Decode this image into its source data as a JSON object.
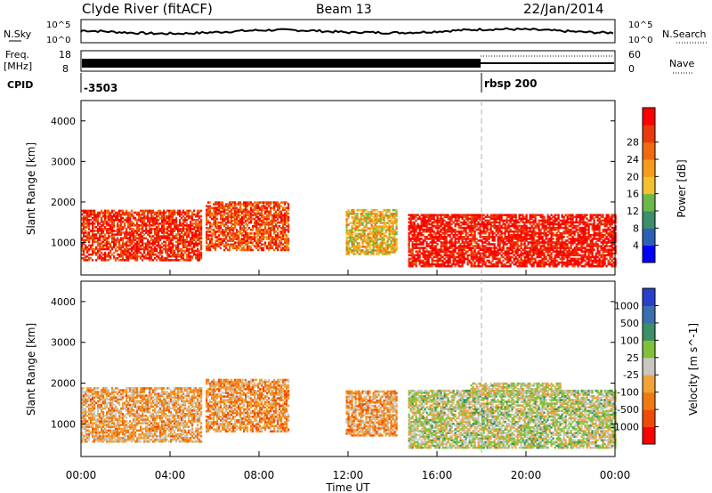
{
  "header": {
    "site": "Clyde River (fitACF)",
    "beam": "Beam 13",
    "date": "22/Jan/2014"
  },
  "panels": {
    "nsky_label": "N.Sky",
    "nsky_ticks": [
      "10^5",
      "10^0"
    ],
    "nsearch_label": "N.Search",
    "nsearch_ticks": [
      "10^5",
      "10^0"
    ],
    "freq_label_line1": "Freq.",
    "freq_label_line2": "[MHz]",
    "freq_ticks": [
      "18",
      "8"
    ],
    "nave_label": "Nave",
    "nave_ticks": [
      "60",
      "0"
    ],
    "cpid_label": "CPID",
    "cpid_first": "-3503",
    "cpid_second": "rbsp 200"
  },
  "colors": {
    "power_scale": [
      "#0000ff",
      "#2f5fb5",
      "#3c8f6a",
      "#6cb84a",
      "#f2c12e",
      "#f59b1e",
      "#f06a10",
      "#e83a0a",
      "#ff0000"
    ],
    "velocity_scale": [
      "#2a3fc9",
      "#3c6fb0",
      "#3d8f66",
      "#7fc23a",
      "#c8c8c0",
      "#f2a23a",
      "#f07a12",
      "#f04a0a",
      "#ff0000"
    ],
    "ground_scatter": "#b4b4b4"
  },
  "chart_data": [
    {
      "type": "heatmap",
      "title": "",
      "ylabel": "Slant Range [km]",
      "xlabel": "",
      "x_ticks": [
        "00:00",
        "04:00",
        "08:00",
        "12:00",
        "16:00",
        "20:00",
        "00:00"
      ],
      "y_ticks": [
        "1000",
        "2000",
        "3000",
        "4000"
      ],
      "ylim": [
        200,
        4500
      ],
      "xlim_hours": [
        0,
        24
      ],
      "colorbar_label": "Power [dB]",
      "colorbar_ticks": [
        "4",
        "8",
        "12",
        "16",
        "20",
        "24",
        "28"
      ],
      "clim": [
        0,
        30
      ],
      "data_regions": [
        {
          "t": [
            0.0,
            5.4
          ],
          "r": [
            550,
            1800
          ],
          "value": 26
        },
        {
          "t": [
            5.6,
            9.3
          ],
          "r": [
            800,
            2000
          ],
          "value": 24
        },
        {
          "t": [
            11.9,
            14.2
          ],
          "r": [
            700,
            1800
          ],
          "value": 16
        },
        {
          "t": [
            14.7,
            24.0
          ],
          "r": [
            400,
            1700
          ],
          "value": 28
        }
      ]
    },
    {
      "type": "heatmap",
      "title": "",
      "ylabel": "Slant Range [km]",
      "xlabel": "Time UT",
      "x_ticks": [
        "00:00",
        "04:00",
        "08:00",
        "12:00",
        "16:00",
        "20:00",
        "00:00"
      ],
      "y_ticks": [
        "1000",
        "2000",
        "3000",
        "4000"
      ],
      "ylim": [
        200,
        4500
      ],
      "xlim_hours": [
        0,
        24
      ],
      "colorbar_label": "Velocity [m s^-1]",
      "colorbar_ticks": [
        "1000",
        "500",
        "100",
        "25",
        "-25",
        "-100",
        "-500",
        "-1000"
      ],
      "clim": [
        -1200,
        1200
      ],
      "data_regions": [
        {
          "t": [
            0.0,
            5.4
          ],
          "r": [
            550,
            1900
          ],
          "value": -300
        },
        {
          "t": [
            5.6,
            9.3
          ],
          "r": [
            800,
            2100
          ],
          "value": -400
        },
        {
          "t": [
            11.9,
            14.2
          ],
          "r": [
            700,
            1800
          ],
          "value": -350
        },
        {
          "t": [
            14.7,
            24.0
          ],
          "r": [
            400,
            1800
          ],
          "value": 80
        },
        {
          "t": [
            17.5,
            21.5
          ],
          "r": [
            1700,
            2000
          ],
          "value": 0
        }
      ]
    }
  ]
}
